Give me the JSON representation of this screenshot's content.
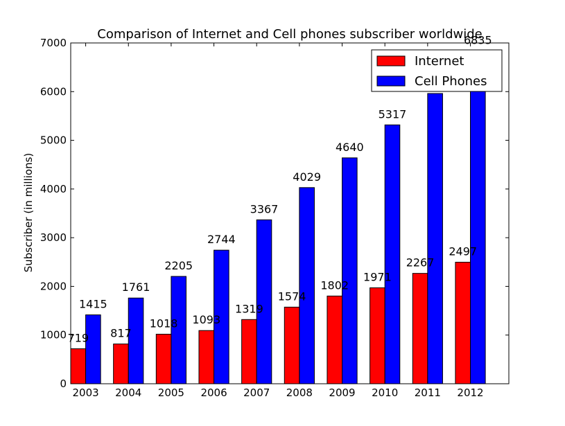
{
  "chart_data": {
    "type": "bar",
    "title": "Comparison of Internet and Cell phones subscriber worldwide",
    "xlabel": "",
    "ylabel": "Subscriber (in millions)",
    "ylim": [
      0,
      7000
    ],
    "yticks": [
      0,
      1000,
      2000,
      3000,
      4000,
      5000,
      6000,
      7000
    ],
    "categories": [
      "2003",
      "2004",
      "2005",
      "2006",
      "2007",
      "2008",
      "2009",
      "2010",
      "2011",
      "2012"
    ],
    "series": [
      {
        "name": "Internet",
        "color": "#ff0000",
        "values": [
          719,
          817,
          1018,
          1093,
          1319,
          1574,
          1802,
          1971,
          2267,
          2497
        ]
      },
      {
        "name": "Cell Phones",
        "color": "#0000ff",
        "values": [
          1415,
          1761,
          2205,
          2744,
          3367,
          4029,
          4640,
          5317,
          5962,
          6835
        ]
      }
    ],
    "data_labels": {
      "Internet": [
        "719",
        "817",
        "1018",
        "1093",
        "1319",
        "1574",
        "1802",
        "1971",
        "2267",
        "2497"
      ],
      "Cell Phones": [
        "1415",
        "1761",
        "2205",
        "2744",
        "3367",
        "4029",
        "4640",
        "5317",
        "",
        "6835"
      ]
    },
    "legend_position": "top-right",
    "grid": false
  }
}
